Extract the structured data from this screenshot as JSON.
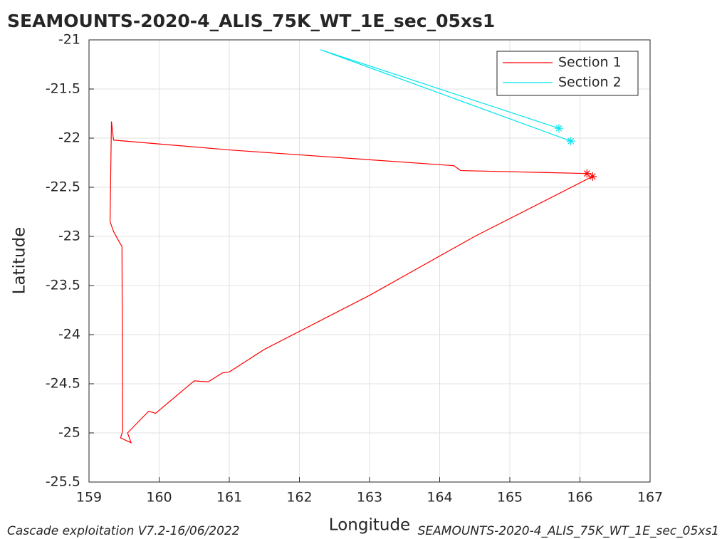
{
  "chart_data": {
    "type": "line",
    "title": "SEAMOUNTS-2020-4_ALIS_75K_WT_1E_sec_05xs1",
    "x_label": "Longitude",
    "y_label": "Latitude",
    "xlim": [
      159,
      167
    ],
    "xticks": [
      159,
      160,
      161,
      162,
      163,
      164,
      165,
      166,
      167
    ],
    "ylim": [
      -25.5,
      -21
    ],
    "yticks": [
      -21,
      -21.5,
      -22,
      -22.5,
      -23,
      -23.5,
      -24,
      -24.5,
      -25,
      -25.5
    ],
    "grid": true,
    "legend": "upper right",
    "series": [
      {
        "name": "Section 1",
        "color": "#ff0000",
        "x": [
          166.1,
          164.3,
          164.2,
          163.0,
          161.0,
          159.35,
          159.32,
          159.3,
          159.35,
          159.45,
          159.47,
          159.48,
          159.45,
          159.6,
          159.55,
          159.85,
          159.95,
          160.5,
          160.7,
          160.9,
          161.0,
          161.5,
          163.0,
          164.5,
          166.18
        ],
        "values": [
          -22.36,
          -22.33,
          -22.28,
          -22.22,
          -22.12,
          -22.02,
          -21.83,
          -22.85,
          -22.95,
          -23.08,
          -23.1,
          -24.98,
          -25.05,
          -25.1,
          -25.0,
          -24.78,
          -24.8,
          -24.47,
          -24.48,
          -24.39,
          -24.38,
          -24.15,
          -23.6,
          -23.0,
          -22.39
        ]
      },
      {
        "name": "Section 2",
        "color": "#00e5ee",
        "x": [
          165.7,
          162.3,
          165.87
        ],
        "values": [
          -21.9,
          -21.1,
          -22.03
        ]
      }
    ]
  },
  "footer": {
    "left": "Cascade exploitation V7.2-16/06/2022",
    "right": "SEAMOUNTS-2020-4_ALIS_75K_WT_1E_sec_05xs1"
  }
}
